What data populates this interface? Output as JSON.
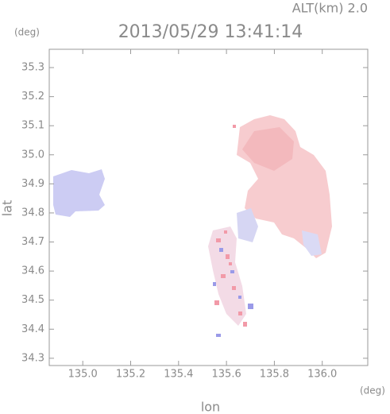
{
  "chart_data": {
    "type": "map",
    "title": "2013/05/29 13:41:14",
    "annotation": "ALT(km) 2.0",
    "xlabel": "lon",
    "ylabel": "lat",
    "xunit": "(deg)",
    "yunit": "(deg)",
    "xlim": [
      134.86,
      136.19
    ],
    "ylim": [
      34.275,
      35.363
    ],
    "xticks": [
      {
        "value": 135.0,
        "label": "135.0"
      },
      135.2,
      135.4,
      135.6,
      135.8,
      {
        "value": 136.0,
        "label": "136.0"
      }
    ],
    "yticks": [
      34.3,
      34.4,
      34.5,
      34.6,
      34.7,
      34.8,
      34.9,
      {
        "value": 35.0,
        "label": "35.0"
      },
      35.1,
      35.2,
      35.3
    ]
  }
}
